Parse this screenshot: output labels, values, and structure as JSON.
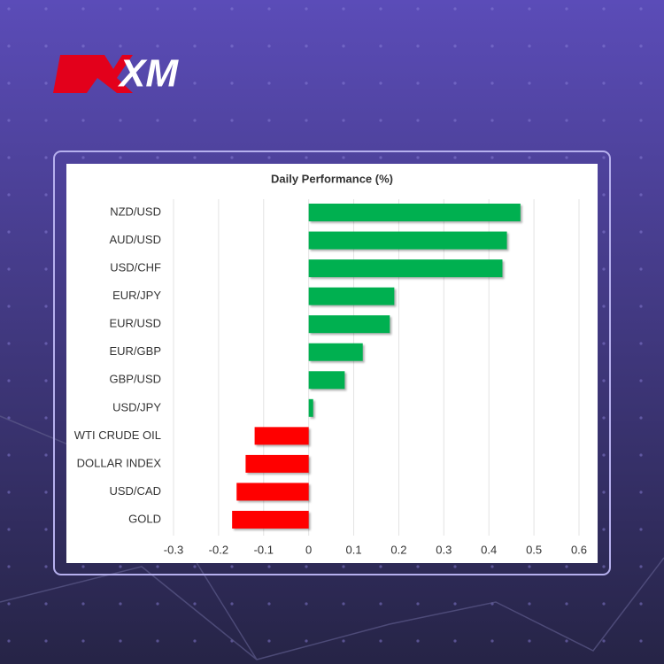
{
  "logo": "XM",
  "chart_data": {
    "type": "hbar",
    "title": "Daily Performance (%)",
    "categories": [
      "NZD/USD",
      "AUD/USD",
      "USD/CHF",
      "EUR/JPY",
      "EUR/USD",
      "EUR/GBP",
      "GBP/USD",
      "USD/JPY",
      "WTI CRUDE OIL",
      "DOLLAR INDEX",
      "USD/CAD",
      "GOLD"
    ],
    "values": [
      0.47,
      0.44,
      0.43,
      0.19,
      0.18,
      0.12,
      0.08,
      0.01,
      -0.12,
      -0.14,
      -0.16,
      -0.17
    ],
    "positive_color": "#00b050",
    "negative_color": "#ff0000",
    "xlim": [
      -0.3,
      0.6
    ],
    "xticks": [
      -0.3,
      -0.2,
      -0.1,
      0,
      0.1,
      0.2,
      0.3,
      0.4,
      0.5,
      0.6
    ],
    "grid": true
  }
}
